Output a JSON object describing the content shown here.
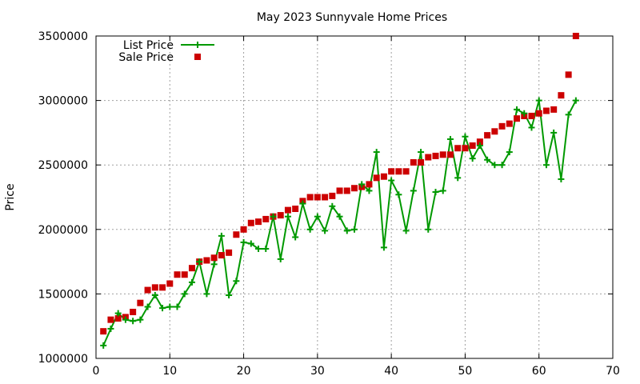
{
  "chart_data": {
    "type": "line",
    "title": "May 2023 Sunnyvale Home Prices",
    "xlabel": "",
    "ylabel": "Price",
    "xlim": [
      0,
      70
    ],
    "ylim": [
      1000000,
      3500000
    ],
    "x_ticks": [
      "0",
      "10",
      "20",
      "30",
      "40",
      "50",
      "60",
      "70"
    ],
    "y_ticks": [
      "1000000",
      "1500000",
      "2000000",
      "2500000",
      "3000000",
      "3500000"
    ],
    "grid": true,
    "legend_position": "top-left",
    "series": [
      {
        "name": "List Price",
        "style": "line-with-plus-markers",
        "color": "#009900",
        "x": [
          1,
          2,
          3,
          4,
          5,
          6,
          7,
          8,
          9,
          10,
          11,
          12,
          13,
          14,
          15,
          16,
          17,
          18,
          19,
          20,
          21,
          22,
          23,
          24,
          25,
          26,
          27,
          28,
          29,
          30,
          31,
          32,
          33,
          34,
          35,
          36,
          37,
          38,
          39,
          40,
          41,
          42,
          43,
          44,
          45,
          46,
          47,
          48,
          49,
          50,
          51,
          52,
          53,
          54,
          55,
          56,
          57,
          58,
          59,
          60,
          61,
          62,
          63,
          64,
          65
        ],
        "y": [
          1100000,
          1230000,
          1350000,
          1300000,
          1290000,
          1300000,
          1400000,
          1490000,
          1390000,
          1400000,
          1400000,
          1500000,
          1590000,
          1750000,
          1500000,
          1730000,
          1950000,
          1490000,
          1600000,
          1900000,
          1890000,
          1850000,
          1850000,
          2100000,
          1770000,
          2100000,
          1940000,
          2200000,
          2000000,
          2100000,
          1990000,
          2180000,
          2100000,
          1990000,
          2000000,
          2350000,
          2300000,
          2600000,
          1860000,
          2380000,
          2270000,
          1990000,
          2300000,
          2600000,
          2000000,
          2290000,
          2300000,
          2700000,
          2400000,
          2720000,
          2550000,
          2650000,
          2540000,
          2500000,
          2500000,
          2600000,
          2930000,
          2900000,
          2790000,
          3000000,
          2500000,
          2750000,
          2390000,
          2890000,
          3000000
        ]
      },
      {
        "name": "Sale Price",
        "style": "square-markers",
        "color": "#cc0000",
        "x": [
          1,
          2,
          3,
          4,
          5,
          6,
          7,
          8,
          9,
          10,
          11,
          12,
          13,
          14,
          15,
          16,
          17,
          18,
          19,
          20,
          21,
          22,
          23,
          24,
          25,
          26,
          27,
          28,
          29,
          30,
          31,
          32,
          33,
          34,
          35,
          36,
          37,
          38,
          39,
          40,
          41,
          42,
          43,
          44,
          45,
          46,
          47,
          48,
          49,
          50,
          51,
          52,
          53,
          54,
          55,
          56,
          57,
          58,
          59,
          60,
          61,
          62,
          63,
          64,
          65
        ],
        "y": [
          1210000,
          1300000,
          1310000,
          1320000,
          1360000,
          1430000,
          1530000,
          1550000,
          1550000,
          1580000,
          1650000,
          1650000,
          1700000,
          1750000,
          1760000,
          1780000,
          1800000,
          1820000,
          1960000,
          2000000,
          2050000,
          2060000,
          2080000,
          2100000,
          2110000,
          2150000,
          2160000,
          2220000,
          2250000,
          2250000,
          2250000,
          2260000,
          2300000,
          2300000,
          2320000,
          2330000,
          2350000,
          2400000,
          2410000,
          2450000,
          2450000,
          2450000,
          2520000,
          2520000,
          2560000,
          2570000,
          2580000,
          2580000,
          2630000,
          2630000,
          2650000,
          2680000,
          2730000,
          2760000,
          2800000,
          2820000,
          2860000,
          2880000,
          2880000,
          2900000,
          2920000,
          2930000,
          3040000,
          3200000,
          3500000
        ]
      }
    ]
  }
}
